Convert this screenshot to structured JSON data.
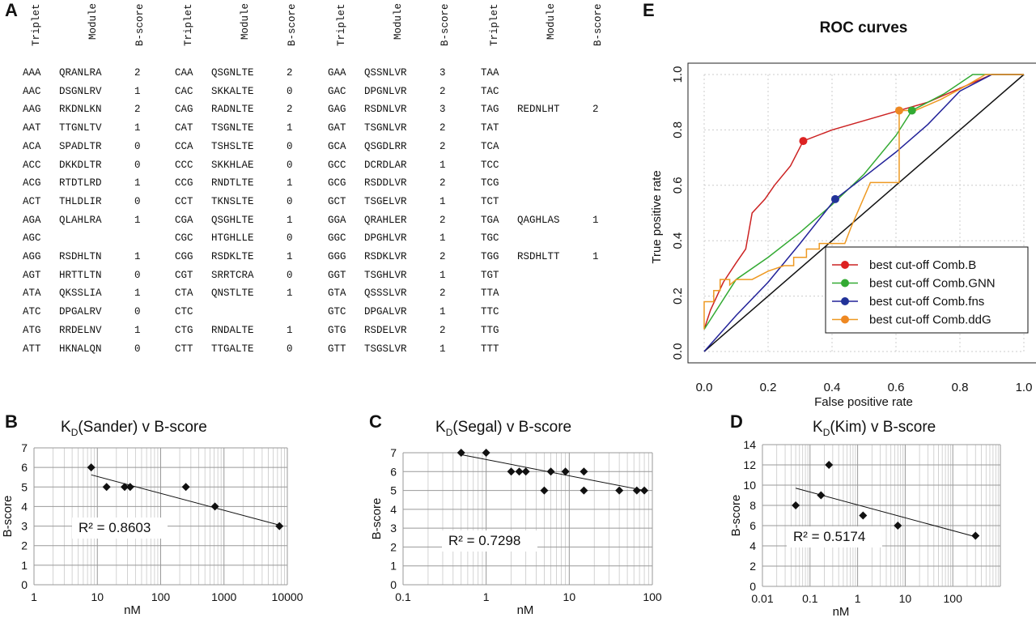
{
  "panel_labels": {
    "a": "A",
    "b": "B",
    "c": "C",
    "d": "D",
    "e": "E"
  },
  "table": {
    "headers": [
      "Triplet",
      "Module",
      "B-score"
    ],
    "groups": [
      {
        "rows": [
          [
            "AAA",
            "QRANLRA",
            "2"
          ],
          [
            "AAC",
            "DSGNLRV",
            "1"
          ],
          [
            "AAG",
            "RKDNLKN",
            "2"
          ],
          [
            "AAT",
            "TTGNLTV",
            "1"
          ],
          [
            "ACA",
            "SPADLTR",
            "0"
          ],
          [
            "ACC",
            "DKKDLTR",
            "0"
          ],
          [
            "ACG",
            "RTDTLRD",
            "1"
          ],
          [
            "ACT",
            "THLDLIR",
            "0"
          ],
          [
            "AGA",
            "QLAHLRA",
            "1"
          ],
          [
            "AGC",
            "",
            ""
          ],
          [
            "AGG",
            "RSDHLTN",
            "1"
          ],
          [
            "AGT",
            "HRTTLTN",
            "0"
          ],
          [
            "ATA",
            "QKSSLIA",
            "1"
          ],
          [
            "ATC",
            "DPGALRV",
            "0"
          ],
          [
            "ATG",
            "RRDELNV",
            "1"
          ],
          [
            "ATT",
            "HKNALQN",
            "0"
          ]
        ]
      },
      {
        "rows": [
          [
            "CAA",
            "QSGNLTE",
            "2"
          ],
          [
            "CAC",
            "SKKALTE",
            "0"
          ],
          [
            "CAG",
            "RADNLTE",
            "2"
          ],
          [
            "CAT",
            "TSGNLTE",
            "1"
          ],
          [
            "CCA",
            "TSHSLTE",
            "0"
          ],
          [
            "CCC",
            "SKKHLAE",
            "0"
          ],
          [
            "CCG",
            "RNDTLTE",
            "1"
          ],
          [
            "CCT",
            "TKNSLTE",
            "0"
          ],
          [
            "CGA",
            "QSGHLTE",
            "1"
          ],
          [
            "CGC",
            "HTGHLLE",
            "0"
          ],
          [
            "CGG",
            "RSDKLTE",
            "1"
          ],
          [
            "CGT",
            "SRRTCRA",
            "0"
          ],
          [
            "CTA",
            "QNSTLTE",
            "1"
          ],
          [
            "CTC",
            "",
            ""
          ],
          [
            "CTG",
            "RNDALTE",
            "1"
          ],
          [
            "CTT",
            "TTGALTE",
            "0"
          ]
        ]
      },
      {
        "rows": [
          [
            "GAA",
            "QSSNLVR",
            "3"
          ],
          [
            "GAC",
            "DPGNLVR",
            "2"
          ],
          [
            "GAG",
            "RSDNLVR",
            "3"
          ],
          [
            "GAT",
            "TSGNLVR",
            "2"
          ],
          [
            "GCA",
            "QSGDLRR",
            "2"
          ],
          [
            "GCC",
            "DCRDLAR",
            "1"
          ],
          [
            "GCG",
            "RSDDLVR",
            "2"
          ],
          [
            "GCT",
            "TSGELVR",
            "1"
          ],
          [
            "GGA",
            "QRAHLER",
            "2"
          ],
          [
            "GGC",
            "DPGHLVR",
            "1"
          ],
          [
            "GGG",
            "RSDKLVR",
            "2"
          ],
          [
            "GGT",
            "TSGHLVR",
            "1"
          ],
          [
            "GTA",
            "QSSSLVR",
            "2"
          ],
          [
            "GTC",
            "DPGALVR",
            "1"
          ],
          [
            "GTG",
            "RSDELVR",
            "2"
          ],
          [
            "GTT",
            "TSGSLVR",
            "1"
          ]
        ]
      },
      {
        "rows": [
          [
            "TAA",
            "",
            ""
          ],
          [
            "TAC",
            "",
            ""
          ],
          [
            "TAG",
            "REDNLHT",
            "2"
          ],
          [
            "TAT",
            "",
            ""
          ],
          [
            "TCA",
            "",
            ""
          ],
          [
            "TCC",
            "",
            ""
          ],
          [
            "TCG",
            "",
            ""
          ],
          [
            "TCT",
            "",
            ""
          ],
          [
            "TGA",
            "QAGHLAS",
            "1"
          ],
          [
            "TGC",
            "",
            ""
          ],
          [
            "TGG",
            "RSDHLTT",
            "1"
          ],
          [
            "TGT",
            "",
            ""
          ],
          [
            "TTA",
            "",
            ""
          ],
          [
            "TTC",
            "",
            ""
          ],
          [
            "TTG",
            "",
            ""
          ],
          [
            "TTT",
            "",
            ""
          ]
        ]
      }
    ]
  },
  "chart_data": [
    {
      "id": "B",
      "type": "scatter",
      "title_main": "K",
      "title_sub": "D",
      "title_rest": "(Sander) v B-score",
      "xlabel": "nM",
      "ylabel": "B-score",
      "xscale": "log",
      "xlim": [
        1,
        10000
      ],
      "ylim": [
        0,
        7
      ],
      "x_ticks": [
        "1",
        "10",
        "100",
        "1000",
        "10000"
      ],
      "y_ticks": [
        "0",
        "1",
        "2",
        "3",
        "4",
        "5",
        "6",
        "7"
      ],
      "points": [
        [
          8,
          6
        ],
        [
          14,
          5
        ],
        [
          27,
          5
        ],
        [
          33,
          5
        ],
        [
          250,
          5
        ],
        [
          720,
          4
        ],
        [
          7500,
          3
        ]
      ],
      "trendline": [
        [
          8,
          5.62
        ],
        [
          7500,
          3.05
        ]
      ],
      "annotation": "R² = 0.8603"
    },
    {
      "id": "C",
      "type": "scatter",
      "title_main": "K",
      "title_sub": "D",
      "title_rest": "(Segal) v B-score",
      "xlabel": "nM",
      "ylabel": "B-score",
      "xscale": "log",
      "xlim": [
        0.1,
        100
      ],
      "ylim": [
        0,
        7
      ],
      "x_ticks": [
        "0.1",
        "1",
        "10",
        "100"
      ],
      "y_ticks": [
        "0",
        "1",
        "2",
        "3",
        "4",
        "5",
        "6",
        "7"
      ],
      "points": [
        [
          0.5,
          7
        ],
        [
          1,
          7
        ],
        [
          2,
          6
        ],
        [
          2.5,
          6
        ],
        [
          3,
          6
        ],
        [
          5,
          5
        ],
        [
          6,
          6
        ],
        [
          9,
          6
        ],
        [
          15,
          6
        ],
        [
          15,
          5
        ],
        [
          40,
          5
        ],
        [
          65,
          5
        ],
        [
          80,
          5
        ]
      ],
      "trendline": [
        [
          0.5,
          6.9
        ],
        [
          80,
          5.0
        ]
      ],
      "annotation": "R² = 0.7298"
    },
    {
      "id": "D",
      "type": "scatter",
      "title_main": "K",
      "title_sub": "D",
      "title_rest": "(Kim) v B-score",
      "xlabel": "nM",
      "ylabel": "B-score",
      "xscale": "log",
      "xlim": [
        0.01,
        1000
      ],
      "ylim": [
        0,
        14
      ],
      "x_ticks": [
        "0.01",
        "0.1",
        "1",
        "10",
        "100"
      ],
      "y_ticks": [
        "0",
        "2",
        "4",
        "6",
        "8",
        "10",
        "12",
        "14"
      ],
      "points": [
        [
          0.05,
          8
        ],
        [
          0.17,
          9
        ],
        [
          0.25,
          12
        ],
        [
          1.3,
          7
        ],
        [
          7,
          6
        ],
        [
          300,
          5
        ]
      ],
      "trendline": [
        [
          0.05,
          9.7
        ],
        [
          300,
          4.9
        ]
      ],
      "annotation": "R² = 0.5174"
    },
    {
      "id": "E",
      "type": "line",
      "title": "ROC curves",
      "xlabel": "False positive rate",
      "ylabel": "True positive rate",
      "xlim": [
        0,
        1
      ],
      "ylim": [
        0,
        1
      ],
      "x_ticks": [
        "0.0",
        "0.2",
        "0.4",
        "0.6",
        "0.8",
        "1.0"
      ],
      "y_ticks": [
        "0.0",
        "0.2",
        "0.4",
        "0.6",
        "0.8",
        "1.0"
      ],
      "legend_position": "bottom-right",
      "series": [
        {
          "name": "best cut-off Comb.B",
          "color": "#cc2222",
          "marker_color": "#dd2222",
          "points": [
            [
              0,
              0.08
            ],
            [
              0.02,
              0.15
            ],
            [
              0.06,
              0.25
            ],
            [
              0.1,
              0.32
            ],
            [
              0.13,
              0.37
            ],
            [
              0.15,
              0.5
            ],
            [
              0.19,
              0.55
            ],
            [
              0.22,
              0.6
            ],
            [
              0.27,
              0.67
            ],
            [
              0.31,
              0.76
            ],
            [
              0.4,
              0.8
            ],
            [
              0.61,
              0.87
            ],
            [
              0.7,
              0.9
            ],
            [
              0.8,
              0.95
            ],
            [
              0.9,
              1.0
            ],
            [
              1.0,
              1.0
            ]
          ],
          "best": [
            0.31,
            0.76
          ]
        },
        {
          "name": "best cut-off Comb.GNN",
          "color": "#33aa33",
          "marker_color": "#33aa33",
          "points": [
            [
              0,
              0.08
            ],
            [
              0.1,
              0.26
            ],
            [
              0.2,
              0.34
            ],
            [
              0.3,
              0.43
            ],
            [
              0.4,
              0.53
            ],
            [
              0.5,
              0.64
            ],
            [
              0.6,
              0.78
            ],
            [
              0.65,
              0.87
            ],
            [
              0.75,
              0.93
            ],
            [
              0.84,
              1.0
            ],
            [
              1.0,
              1.0
            ]
          ],
          "best": [
            0.65,
            0.87
          ]
        },
        {
          "name": "best cut-off Comb.fns",
          "color": "#222299",
          "marker_color": "#223399",
          "points": [
            [
              0,
              0
            ],
            [
              0.1,
              0.13
            ],
            [
              0.2,
              0.25
            ],
            [
              0.3,
              0.39
            ],
            [
              0.41,
              0.55
            ],
            [
              0.5,
              0.63
            ],
            [
              0.6,
              0.72
            ],
            [
              0.7,
              0.82
            ],
            [
              0.8,
              0.94
            ],
            [
              0.9,
              1.0
            ],
            [
              1.0,
              1.0
            ]
          ],
          "best": [
            0.41,
            0.55
          ]
        },
        {
          "name": "best cut-off Comb.ddG",
          "color": "#ee9922",
          "marker_color": "#ee8822",
          "points": [
            [
              0,
              0.08
            ],
            [
              0,
              0.18
            ],
            [
              0.03,
              0.18
            ],
            [
              0.03,
              0.22
            ],
            [
              0.05,
              0.22
            ],
            [
              0.05,
              0.26
            ],
            [
              0.08,
              0.26
            ],
            [
              0.08,
              0.24
            ],
            [
              0.1,
              0.26
            ],
            [
              0.15,
              0.26
            ],
            [
              0.2,
              0.29
            ],
            [
              0.25,
              0.31
            ],
            [
              0.28,
              0.31
            ],
            [
              0.28,
              0.34
            ],
            [
              0.32,
              0.34
            ],
            [
              0.32,
              0.37
            ],
            [
              0.36,
              0.37
            ],
            [
              0.36,
              0.39
            ],
            [
              0.44,
              0.39
            ],
            [
              0.46,
              0.45
            ],
            [
              0.52,
              0.61
            ],
            [
              0.61,
              0.61
            ],
            [
              0.61,
              0.87
            ],
            [
              0.66,
              0.87
            ],
            [
              0.74,
              0.91
            ],
            [
              0.82,
              0.96
            ],
            [
              0.88,
              1.0
            ],
            [
              1.0,
              1.0
            ]
          ],
          "best": [
            0.61,
            0.87
          ]
        }
      ],
      "diagonal": true
    }
  ]
}
